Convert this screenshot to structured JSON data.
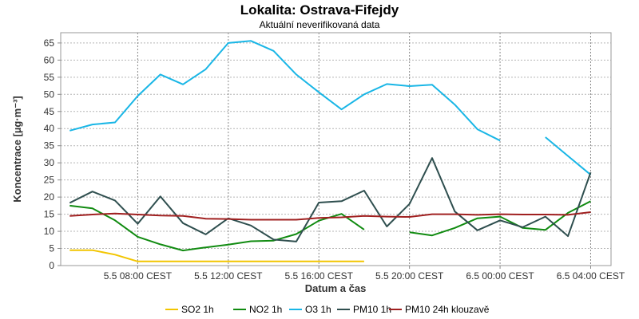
{
  "chart_data": {
    "type": "line",
    "title": "Lokalita: Ostrava-Fifejdy",
    "subtitle": "Aktuální neverifikovaná data",
    "xlabel": "Datum a čas",
    "ylabel": "Koncentrace [µg·m⁻³]",
    "ylim": [
      0,
      68
    ],
    "yticks": [
      0,
      5,
      10,
      15,
      20,
      25,
      30,
      35,
      40,
      45,
      50,
      55,
      60,
      65
    ],
    "grid": true,
    "legend_position": "bottom",
    "xticks": [
      {
        "hour": 8,
        "label": "5.5 08:00 CEST"
      },
      {
        "hour": 12,
        "label": "5.5 12:00 CEST"
      },
      {
        "hour": 16,
        "label": "5.5 16:00 CEST"
      },
      {
        "hour": 20,
        "label": "5.5 20:00 CEST"
      },
      {
        "hour": 24,
        "label": "6.5 00:00 CEST"
      },
      {
        "hour": 28,
        "label": "6.5 04:00 CEST"
      }
    ],
    "xlim": [
      4.6,
      28.9
    ],
    "x": [
      5,
      6,
      7,
      8,
      9,
      10,
      11,
      12,
      13,
      14,
      15,
      16,
      17,
      18,
      19,
      20,
      21,
      22,
      23,
      24,
      25,
      26,
      27,
      28
    ],
    "series": [
      {
        "name": "SO2 1h",
        "color": "#f2c500",
        "values": [
          4.5,
          4.5,
          3.2,
          1.2,
          1.2,
          1.2,
          1.2,
          1.2,
          1.2,
          1.2,
          1.2,
          1.2,
          1.2,
          1.2,
          null,
          null,
          null,
          null,
          null,
          null,
          null,
          null,
          null,
          null
        ]
      },
      {
        "name": "NO2 1h",
        "color": "#118b11",
        "values": [
          17.5,
          16.7,
          13.2,
          8.4,
          6.2,
          4.4,
          5.3,
          6.1,
          7.1,
          7.3,
          9.2,
          13.1,
          15.1,
          10.5,
          null,
          9.7,
          8.8,
          11.0,
          13.8,
          14.3,
          11.0,
          10.4,
          15.4,
          18.8
        ]
      },
      {
        "name": "O3 1h",
        "color": "#19b6e6",
        "values": [
          39.4,
          41.2,
          41.8,
          49.5,
          55.8,
          52.9,
          57.3,
          65.0,
          65.6,
          62.7,
          55.8,
          50.6,
          45.6,
          50.0,
          53.0,
          52.4,
          52.8,
          47.0,
          39.8,
          36.5,
          null,
          37.5,
          32.0,
          26.5
        ]
      },
      {
        "name": "PM10 1h",
        "color": "#2f4f4f",
        "values": [
          18.3,
          21.6,
          19.0,
          12.2,
          20.2,
          12.4,
          9.1,
          13.8,
          11.7,
          7.6,
          7.0,
          18.4,
          18.8,
          21.9,
          11.4,
          18.0,
          31.4,
          15.8,
          10.3,
          13.2,
          11.2,
          14.3,
          8.6,
          27.2
        ]
      },
      {
        "name": "PM10 24h klouzavě",
        "color": "#a02020",
        "values": [
          14.5,
          14.9,
          15.2,
          14.9,
          14.6,
          14.5,
          13.7,
          13.6,
          13.4,
          13.4,
          13.4,
          13.9,
          14.1,
          14.5,
          14.3,
          14.2,
          15.0,
          15.0,
          14.8,
          15.0,
          14.9,
          14.9,
          14.8,
          15.6
        ]
      }
    ]
  }
}
